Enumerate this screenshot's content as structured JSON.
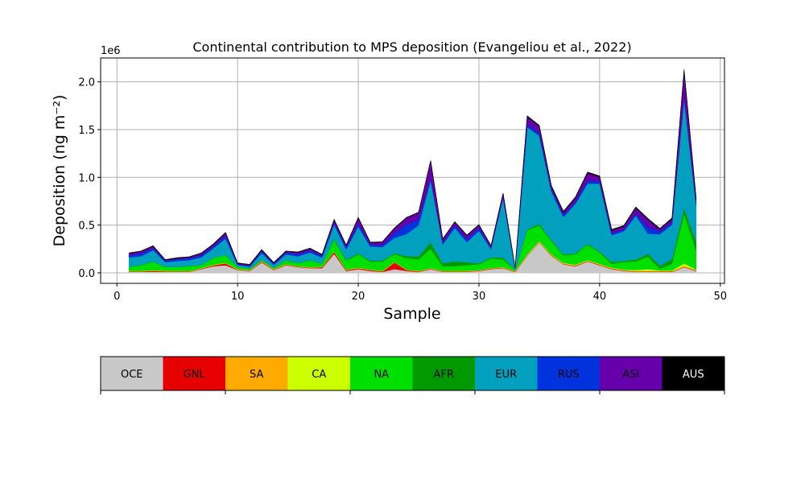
{
  "figure": {
    "title": "Continental contribution to MPS deposition (Evangeliou et al., 2022)",
    "xlabel": "Sample",
    "ylabel": "Deposition (ng m⁻²)",
    "y_offset_text": "1e6"
  },
  "chart_data": {
    "type": "area",
    "stacked": true,
    "title": "Continental contribution to MPS deposition (Evangeliou et al., 2022)",
    "xlabel": "Sample",
    "ylabel": "Deposition (ng m⁻²)",
    "y_scale_multiplier": "1e6",
    "xlim": [
      -1.35,
      50.35
    ],
    "ylim": [
      -0.11,
      2.25
    ],
    "xticks": [
      0,
      10,
      20,
      30,
      40,
      50
    ],
    "yticks": [
      0.0,
      0.5,
      1.0,
      1.5,
      2.0
    ],
    "xtick_labels": [
      "0",
      "10",
      "20",
      "30",
      "40",
      "50"
    ],
    "ytick_labels": [
      "0.0",
      "0.5",
      "1.0",
      "1.5",
      "2.0"
    ],
    "grid": true,
    "legend_placement": "colorbar below chart",
    "x": [
      1,
      2,
      3,
      4,
      5,
      6,
      7,
      8,
      9,
      10,
      11,
      12,
      13,
      14,
      15,
      16,
      17,
      18,
      19,
      20,
      21,
      22,
      23,
      24,
      25,
      26,
      27,
      28,
      29,
      30,
      31,
      32,
      33,
      34,
      35,
      36,
      37,
      38,
      39,
      40,
      41,
      42,
      43,
      44,
      45,
      46,
      47,
      48
    ],
    "series": [
      {
        "name": "OCE",
        "color": "#c8c8c8",
        "values": [
          0.01,
          0.01,
          0.01,
          0.01,
          0.01,
          0.01,
          0.04,
          0.07,
          0.08,
          0.03,
          0.02,
          0.11,
          0.03,
          0.08,
          0.06,
          0.05,
          0.05,
          0.2,
          0.02,
          0.04,
          0.02,
          0.01,
          0.04,
          0.02,
          0.01,
          0.04,
          0.01,
          0.01,
          0.01,
          0.02,
          0.04,
          0.05,
          0.01,
          0.18,
          0.32,
          0.18,
          0.09,
          0.07,
          0.12,
          0.08,
          0.04,
          0.02,
          0.01,
          0.01,
          0.01,
          0.01,
          0.06,
          0.02
        ]
      },
      {
        "name": "GNL",
        "color": "#e60000",
        "values": [
          0.005,
          0.005,
          0.01,
          0.005,
          0.005,
          0.005,
          0.005,
          0.01,
          0.02,
          0.005,
          0.005,
          0.01,
          0.005,
          0.005,
          0.005,
          0.005,
          0.01,
          0.02,
          0.01,
          0.01,
          0.01,
          0.005,
          0.07,
          0.01,
          0.005,
          0.005,
          0.005,
          0.005,
          0.005,
          0.005,
          0.005,
          0.005,
          0.005,
          0.005,
          0.005,
          0.005,
          0.005,
          0.005,
          0.005,
          0.005,
          0.005,
          0.005,
          0.005,
          0.005,
          0.005,
          0.005,
          0.005,
          0.005
        ]
      },
      {
        "name": "SA",
        "color": "#ffaa00",
        "values": [
          0.003,
          0.003,
          0.003,
          0.003,
          0.003,
          0.003,
          0.003,
          0.003,
          0.003,
          0.003,
          0.003,
          0.003,
          0.003,
          0.003,
          0.003,
          0.003,
          0.003,
          0.003,
          0.003,
          0.003,
          0.003,
          0.003,
          0.003,
          0.003,
          0.003,
          0.003,
          0.003,
          0.003,
          0.003,
          0.003,
          0.003,
          0.003,
          0.003,
          0.005,
          0.005,
          0.005,
          0.005,
          0.005,
          0.005,
          0.005,
          0.005,
          0.005,
          0.005,
          0.005,
          0.005,
          0.005,
          0.005,
          0.005
        ]
      },
      {
        "name": "CA",
        "color": "#ccff00",
        "values": [
          0.003,
          0.003,
          0.003,
          0.003,
          0.003,
          0.003,
          0.003,
          0.003,
          0.003,
          0.003,
          0.003,
          0.003,
          0.003,
          0.003,
          0.003,
          0.003,
          0.003,
          0.003,
          0.003,
          0.003,
          0.003,
          0.003,
          0.003,
          0.003,
          0.003,
          0.003,
          0.003,
          0.003,
          0.003,
          0.003,
          0.003,
          0.003,
          0.003,
          0.005,
          0.005,
          0.005,
          0.005,
          0.005,
          0.005,
          0.005,
          0.005,
          0.005,
          0.01,
          0.02,
          0.005,
          0.005,
          0.03,
          0.005
        ]
      },
      {
        "name": "NA",
        "color": "#00e000",
        "values": [
          0.04,
          0.06,
          0.09,
          0.04,
          0.04,
          0.05,
          0.03,
          0.07,
          0.08,
          0.02,
          0.01,
          0.01,
          0.01,
          0.04,
          0.03,
          0.07,
          0.03,
          0.12,
          0.09,
          0.14,
          0.08,
          0.1,
          0.08,
          0.12,
          0.12,
          0.2,
          0.05,
          0.05,
          0.06,
          0.06,
          0.1,
          0.08,
          0.01,
          0.25,
          0.16,
          0.14,
          0.08,
          0.11,
          0.16,
          0.12,
          0.04,
          0.08,
          0.09,
          0.13,
          0.02,
          0.07,
          0.52,
          0.2
        ]
      },
      {
        "name": "AFR",
        "color": "#009900",
        "values": [
          0.003,
          0.003,
          0.003,
          0.003,
          0.003,
          0.003,
          0.003,
          0.003,
          0.003,
          0.003,
          0.003,
          0.003,
          0.003,
          0.003,
          0.003,
          0.003,
          0.003,
          0.01,
          0.01,
          0.01,
          0.01,
          0.01,
          0.01,
          0.02,
          0.03,
          0.07,
          0.03,
          0.05,
          0.03,
          0.01,
          0.01,
          0.02,
          0.003,
          0.01,
          0.02,
          0.01,
          0.01,
          0.01,
          0.01,
          0.01,
          0.02,
          0.01,
          0.02,
          0.03,
          0.03,
          0.05,
          0.06,
          0.09
        ]
      },
      {
        "name": "EUR",
        "color": "#00a0be",
        "values": [
          0.1,
          0.09,
          0.12,
          0.05,
          0.06,
          0.06,
          0.08,
          0.1,
          0.17,
          0.02,
          0.02,
          0.07,
          0.03,
          0.06,
          0.07,
          0.08,
          0.06,
          0.15,
          0.11,
          0.28,
          0.15,
          0.14,
          0.16,
          0.23,
          0.33,
          0.65,
          0.2,
          0.35,
          0.21,
          0.34,
          0.09,
          0.62,
          0.01,
          1.07,
          0.92,
          0.51,
          0.39,
          0.52,
          0.63,
          0.71,
          0.28,
          0.31,
          0.46,
          0.21,
          0.33,
          0.36,
          1.14,
          0.38
        ]
      },
      {
        "name": "RUS",
        "color": "#0033dd",
        "values": [
          0.02,
          0.03,
          0.02,
          0.01,
          0.02,
          0.02,
          0.02,
          0.02,
          0.03,
          0.005,
          0.01,
          0.02,
          0.01,
          0.02,
          0.02,
          0.02,
          0.02,
          0.02,
          0.02,
          0.03,
          0.02,
          0.02,
          0.05,
          0.1,
          0.06,
          0.02,
          0.01,
          0.03,
          0.03,
          0.03,
          0.01,
          0.02,
          0.003,
          0.03,
          0.03,
          0.02,
          0.02,
          0.02,
          0.03,
          0.03,
          0.02,
          0.02,
          0.02,
          0.07,
          0.03,
          0.02,
          0.03,
          0.03
        ]
      },
      {
        "name": "ASI",
        "color": "#6600aa",
        "values": [
          0.02,
          0.02,
          0.02,
          0.01,
          0.01,
          0.01,
          0.02,
          0.02,
          0.03,
          0.01,
          0.01,
          0.01,
          0.01,
          0.01,
          0.02,
          0.02,
          0.01,
          0.03,
          0.02,
          0.06,
          0.02,
          0.03,
          0.05,
          0.07,
          0.07,
          0.18,
          0.04,
          0.03,
          0.04,
          0.03,
          0.02,
          0.03,
          0.005,
          0.08,
          0.07,
          0.03,
          0.03,
          0.04,
          0.08,
          0.04,
          0.03,
          0.03,
          0.06,
          0.08,
          0.02,
          0.04,
          0.26,
          0.03
        ]
      },
      {
        "name": "AUS",
        "color": "#000000",
        "values": [
          0.005,
          0.005,
          0.005,
          0.005,
          0.005,
          0.005,
          0.005,
          0.005,
          0.005,
          0.005,
          0.005,
          0.005,
          0.005,
          0.005,
          0.005,
          0.005,
          0.005,
          0.005,
          0.005,
          0.005,
          0.005,
          0.005,
          0.005,
          0.005,
          0.005,
          0.005,
          0.005,
          0.005,
          0.005,
          0.005,
          0.005,
          0.005,
          0.005,
          0.01,
          0.01,
          0.01,
          0.01,
          0.01,
          0.01,
          0.01,
          0.01,
          0.01,
          0.01,
          0.01,
          0.01,
          0.01,
          0.02,
          0.02
        ]
      }
    ]
  }
}
